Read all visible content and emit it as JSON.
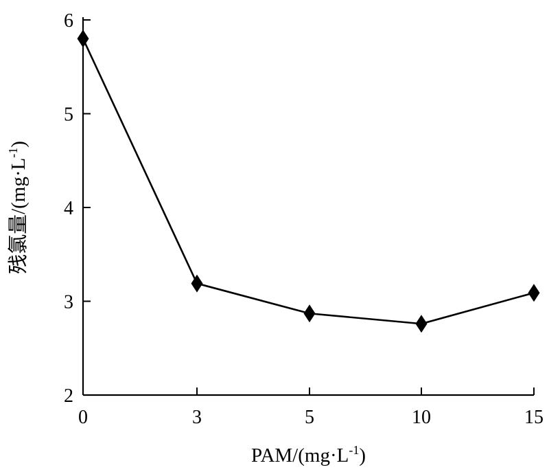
{
  "chart_data": {
    "type": "line",
    "categories": [
      "0",
      "3",
      "5",
      "10",
      "15"
    ],
    "series": [
      {
        "values": [
          5.8,
          3.19,
          2.87,
          2.76,
          3.09
        ]
      }
    ],
    "title": "",
    "xlabel_main": "PAM/(mg·L",
    "xlabel_sup": "-1",
    "xlabel_close": ")",
    "ylabel_main": "残氯量/(mg·L",
    "ylabel_sup": "-1",
    "ylabel_close": ")",
    "ylim": [
      2,
      6
    ],
    "yticks": [
      2,
      3,
      4,
      5,
      6
    ],
    "grid": false,
    "legend": "none",
    "marker": "diamond",
    "color": "#000000"
  }
}
